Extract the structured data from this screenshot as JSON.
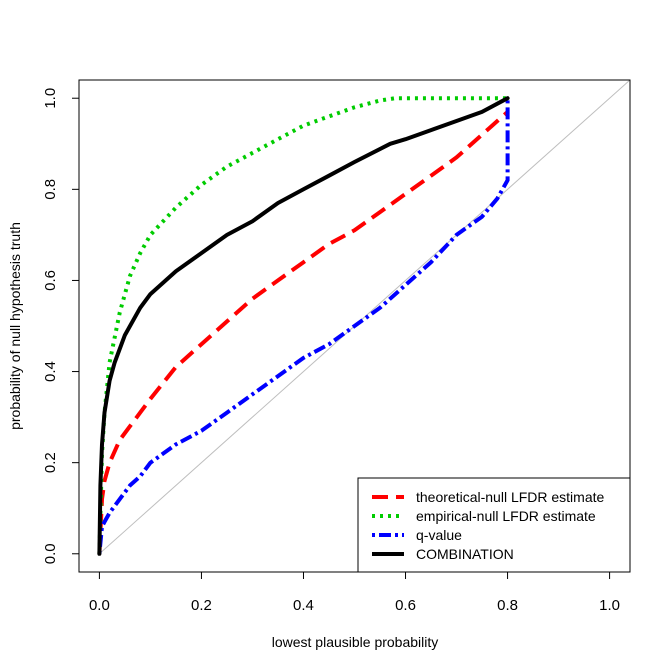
{
  "chart_data": {
    "type": "line",
    "title": "",
    "xlabel": "lowest plausible probability",
    "ylabel": "probability of null hypothesis truth",
    "xlim": [
      -0.04,
      1.04
    ],
    "ylim": [
      -0.04,
      1.04
    ],
    "x_ticks": [
      0.0,
      0.2,
      0.4,
      0.6,
      0.8,
      1.0
    ],
    "x_tick_labels": [
      "0.0",
      "0.2",
      "0.4",
      "0.6",
      "0.8",
      "1.0"
    ],
    "y_ticks": [
      0.0,
      0.2,
      0.4,
      0.6,
      0.8,
      1.0
    ],
    "y_tick_labels": [
      "0.0",
      "0.2",
      "0.4",
      "0.6",
      "0.8",
      "1.0"
    ],
    "legend_position": "bottom-right",
    "reference_line": {
      "name": "identity",
      "color": "#BEBEBE",
      "points": [
        [
          0,
          0
        ],
        [
          1.04,
          1.04
        ]
      ]
    },
    "series": [
      {
        "name": "theoretical-null LFDR estimate",
        "color": "#FF0000",
        "style": "dashed",
        "x": [
          0.0,
          0.005,
          0.01,
          0.02,
          0.04,
          0.06,
          0.08,
          0.1,
          0.15,
          0.2,
          0.25,
          0.3,
          0.35,
          0.4,
          0.45,
          0.5,
          0.55,
          0.6,
          0.65,
          0.7,
          0.75,
          0.8
        ],
        "y": [
          0.0,
          0.12,
          0.16,
          0.2,
          0.25,
          0.28,
          0.31,
          0.34,
          0.41,
          0.46,
          0.51,
          0.56,
          0.6,
          0.64,
          0.68,
          0.71,
          0.75,
          0.79,
          0.83,
          0.87,
          0.92,
          0.97
        ]
      },
      {
        "name": "empirical-null LFDR estimate",
        "color": "#00CC00",
        "style": "dotted",
        "x": [
          0.0,
          0.005,
          0.01,
          0.02,
          0.04,
          0.06,
          0.08,
          0.1,
          0.15,
          0.2,
          0.25,
          0.3,
          0.35,
          0.4,
          0.45,
          0.5,
          0.55,
          0.58,
          0.6,
          0.65,
          0.7,
          0.75,
          0.8
        ],
        "y": [
          0.0,
          0.22,
          0.31,
          0.42,
          0.53,
          0.61,
          0.66,
          0.7,
          0.76,
          0.81,
          0.85,
          0.88,
          0.91,
          0.94,
          0.96,
          0.98,
          0.995,
          1.0,
          1.0,
          1.0,
          1.0,
          1.0,
          1.0
        ]
      },
      {
        "name": "q-value",
        "color": "#0000FF",
        "style": "dotdash",
        "x": [
          0.0,
          0.005,
          0.01,
          0.02,
          0.04,
          0.06,
          0.08,
          0.1,
          0.15,
          0.2,
          0.25,
          0.3,
          0.35,
          0.4,
          0.45,
          0.5,
          0.55,
          0.6,
          0.65,
          0.7,
          0.75,
          0.78,
          0.8,
          0.8
        ],
        "y": [
          0.0,
          0.06,
          0.07,
          0.09,
          0.12,
          0.15,
          0.17,
          0.2,
          0.24,
          0.27,
          0.31,
          0.35,
          0.39,
          0.43,
          0.46,
          0.5,
          0.54,
          0.59,
          0.64,
          0.7,
          0.74,
          0.78,
          0.82,
          1.0
        ]
      },
      {
        "name": "COMBINATION",
        "color": "#000000",
        "style": "solid",
        "x": [
          0.0,
          0.002,
          0.005,
          0.01,
          0.02,
          0.03,
          0.05,
          0.08,
          0.1,
          0.15,
          0.2,
          0.25,
          0.3,
          0.35,
          0.4,
          0.45,
          0.5,
          0.57,
          0.6,
          0.65,
          0.7,
          0.75,
          0.8
        ],
        "y": [
          0.0,
          0.15,
          0.24,
          0.31,
          0.38,
          0.42,
          0.48,
          0.54,
          0.57,
          0.62,
          0.66,
          0.7,
          0.73,
          0.77,
          0.8,
          0.83,
          0.86,
          0.9,
          0.91,
          0.93,
          0.95,
          0.97,
          1.0
        ]
      }
    ]
  }
}
